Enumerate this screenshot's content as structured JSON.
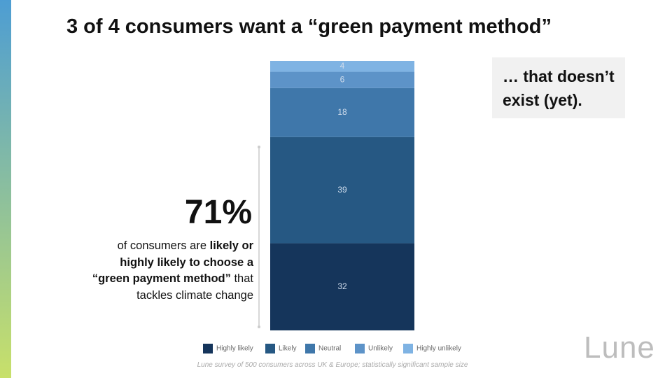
{
  "title": "3 of 4 consumers want a “green payment method”",
  "callout": "… that doesn’t exist (yet).",
  "highlight": "71%",
  "description": {
    "before": "of consumers are ",
    "bold": "likely or highly likely to choose a “green payment method”",
    "after": " that tackles climate change"
  },
  "footnote": "Lune survey of 500 consumers across UK & Europe; statistically significant sample size",
  "logo": "Lune",
  "chart_data": {
    "type": "bar",
    "stacked": true,
    "categories": [
      null
    ],
    "series": [
      {
        "name": "Highly likely",
        "color": "#15355b",
        "values": [
          32
        ]
      },
      {
        "name": "Likely",
        "color": "#265883",
        "values": [
          39
        ]
      },
      {
        "name": "Neutral",
        "color": "#3f77aa",
        "values": [
          18
        ]
      },
      {
        "name": "Unlikely",
        "color": "#5d93c8",
        "values": [
          6
        ]
      },
      {
        "name": "Highly unlikely",
        "color": "#7fb3e3",
        "values": [
          4
        ]
      }
    ]
  }
}
